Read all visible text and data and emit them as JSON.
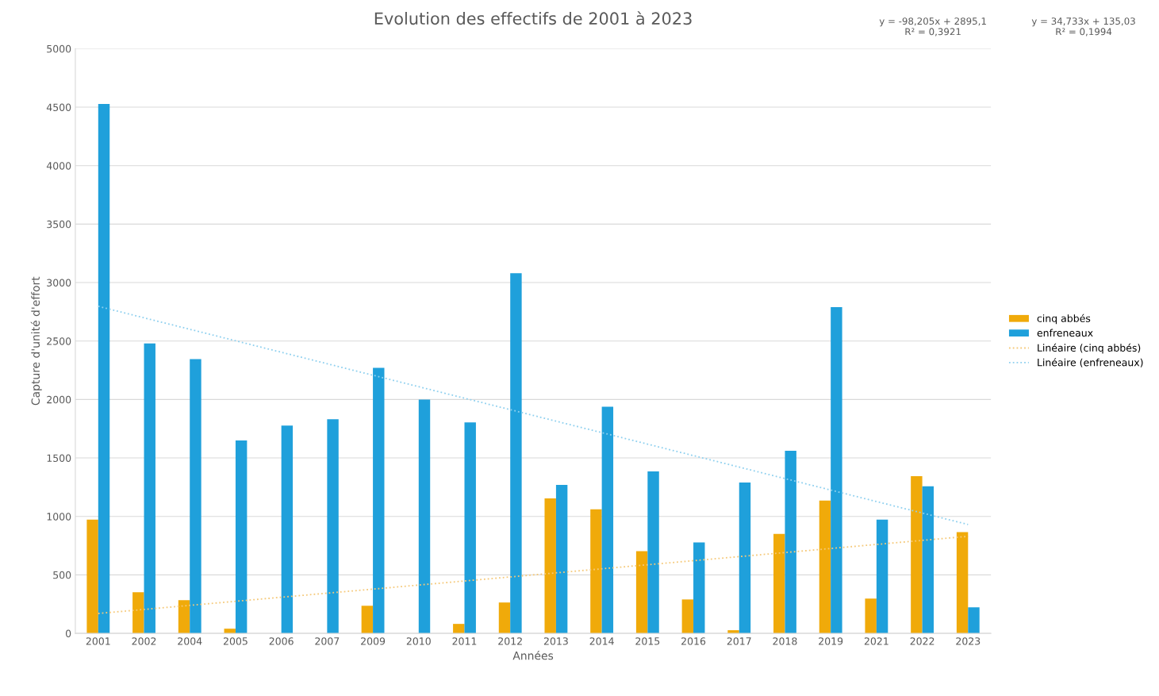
{
  "chart_data": {
    "type": "bar",
    "title": "Evolution des effectifs de 2001 à 2023",
    "xlabel": "Années",
    "ylabel": "Capture d'unité d'effort",
    "categories": [
      "2001",
      "2002",
      "2004",
      "2005",
      "2006",
      "2007",
      "2009",
      "2010",
      "2011",
      "2012",
      "2013",
      "2014",
      "2015",
      "2016",
      "2017",
      "2018",
      "2019",
      "2021",
      "2022",
      "2023"
    ],
    "series": [
      {
        "name": "cinq abbés",
        "color": "#f0aa0a",
        "values": [
          973,
          351,
          284,
          40,
          0,
          0,
          236,
          0,
          81,
          264,
          1155,
          1061,
          703,
          290,
          27,
          851,
          1135,
          297,
          1345,
          865
        ]
      },
      {
        "name": "enfreneaux",
        "color": "#1fa0db",
        "values": [
          4527,
          2480,
          2345,
          1649,
          1777,
          1831,
          2270,
          2000,
          1804,
          3081,
          1270,
          1939,
          1385,
          777,
          1290,
          1561,
          2790,
          973,
          1257,
          223
        ]
      },
      {
        "name": "Linéaire (cinq abbés)",
        "type": "line",
        "line_style": "dotted",
        "color": "#f5c97a",
        "values": [
          170,
          null,
          null,
          null,
          null,
          null,
          null,
          null,
          null,
          null,
          null,
          null,
          null,
          null,
          null,
          null,
          null,
          null,
          null,
          830
        ]
      },
      {
        "name": "Linéaire (enfreneaux)",
        "type": "line",
        "line_style": "dotted",
        "color": "#8fd0ef",
        "values": [
          2797,
          null,
          null,
          null,
          null,
          null,
          null,
          null,
          null,
          null,
          null,
          null,
          null,
          null,
          null,
          null,
          null,
          null,
          null,
          931
        ]
      }
    ],
    "ylim": [
      0,
      5000
    ],
    "yticks": [
      0,
      500,
      1000,
      1500,
      2000,
      2500,
      3000,
      3500,
      4000,
      4500,
      5000
    ],
    "grid": "y",
    "legend": "right",
    "annotations": [
      "y = -98,205x + 2895,1\nR² = 0,3921",
      "y = 34,733x + 135,03\nR² = 0,1994"
    ]
  }
}
